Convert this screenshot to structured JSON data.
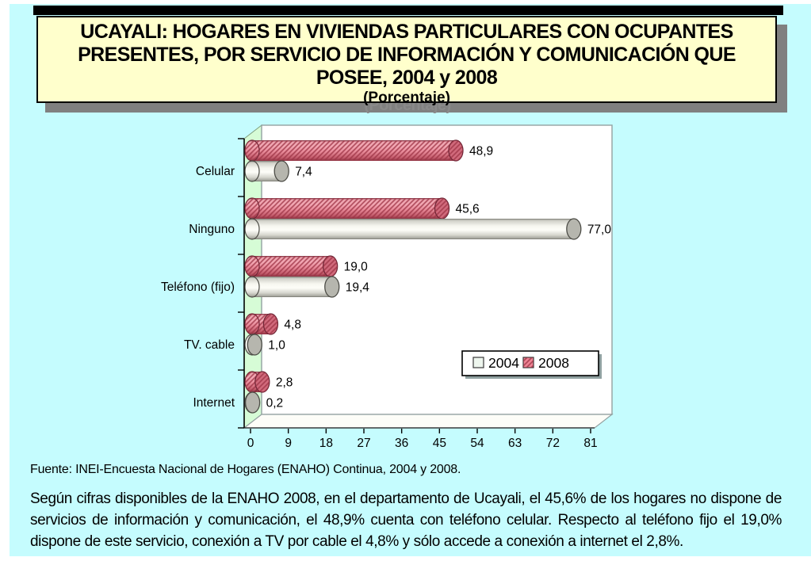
{
  "colors": {
    "slide_background": "#C5FCFE",
    "title_fill": "#FFFFCC",
    "wall_green": "#D6FCD6",
    "series_2004": "#F2F2EA",
    "series_2008": "#E2808E"
  },
  "title_box": {
    "lines": [
      "UCAYALI: HOGARES EN VIVIENDAS PARTICULARES CON OCUPANTES",
      "PRESENTES, POR SERVICIO DE INFORMACIÓN Y COMUNICACIÓN QUE",
      "POSEE, 2004 y 2008"
    ],
    "subtitle": "(Porcentaje)",
    "ghost_subtitle": "(Porcentaje)"
  },
  "chart_data": {
    "type": "bar",
    "orientation": "horizontal",
    "categories": [
      "Celular",
      "Ninguno",
      "Teléfono (fijo)",
      "TV. cable",
      "Internet"
    ],
    "series": [
      {
        "name": "2004",
        "values": [
          7.4,
          77.0,
          19.4,
          1.0,
          0.2
        ],
        "labels": [
          "7,4",
          "77,0",
          "19,4",
          "1,0",
          "0,2"
        ],
        "style": "solid-white-cylinder"
      },
      {
        "name": "2008",
        "values": [
          48.9,
          45.6,
          19.0,
          4.8,
          2.8
        ],
        "labels": [
          "48,9",
          "45,6",
          "19,0",
          "4,8",
          "2,8"
        ],
        "style": "pink-hatched-cylinder"
      }
    ],
    "xlim": [
      0,
      81
    ],
    "x_ticks": [
      0,
      9,
      18,
      27,
      36,
      45,
      54,
      63,
      72,
      81
    ],
    "grid": false,
    "legend_position": "middle-right",
    "legend_items": [
      "2004",
      "2008"
    ]
  },
  "source": "Fuente: INEI-Encuesta Nacional de Hogares (ENAHO) Continua, 2004 y 2008.",
  "body_text": "Según cifras disponibles de la ENAHO 2008, en el departamento de Ucayali, el 45,6% de los hogares no dispone de servicios de información y comunicación, el 48,9% cuenta con teléfono celular. Respecto al teléfono fijo el 19,0% dispone de este servicio, conexión a TV por cable el 4,8% y sólo accede a conexión a internet el 2,8%."
}
